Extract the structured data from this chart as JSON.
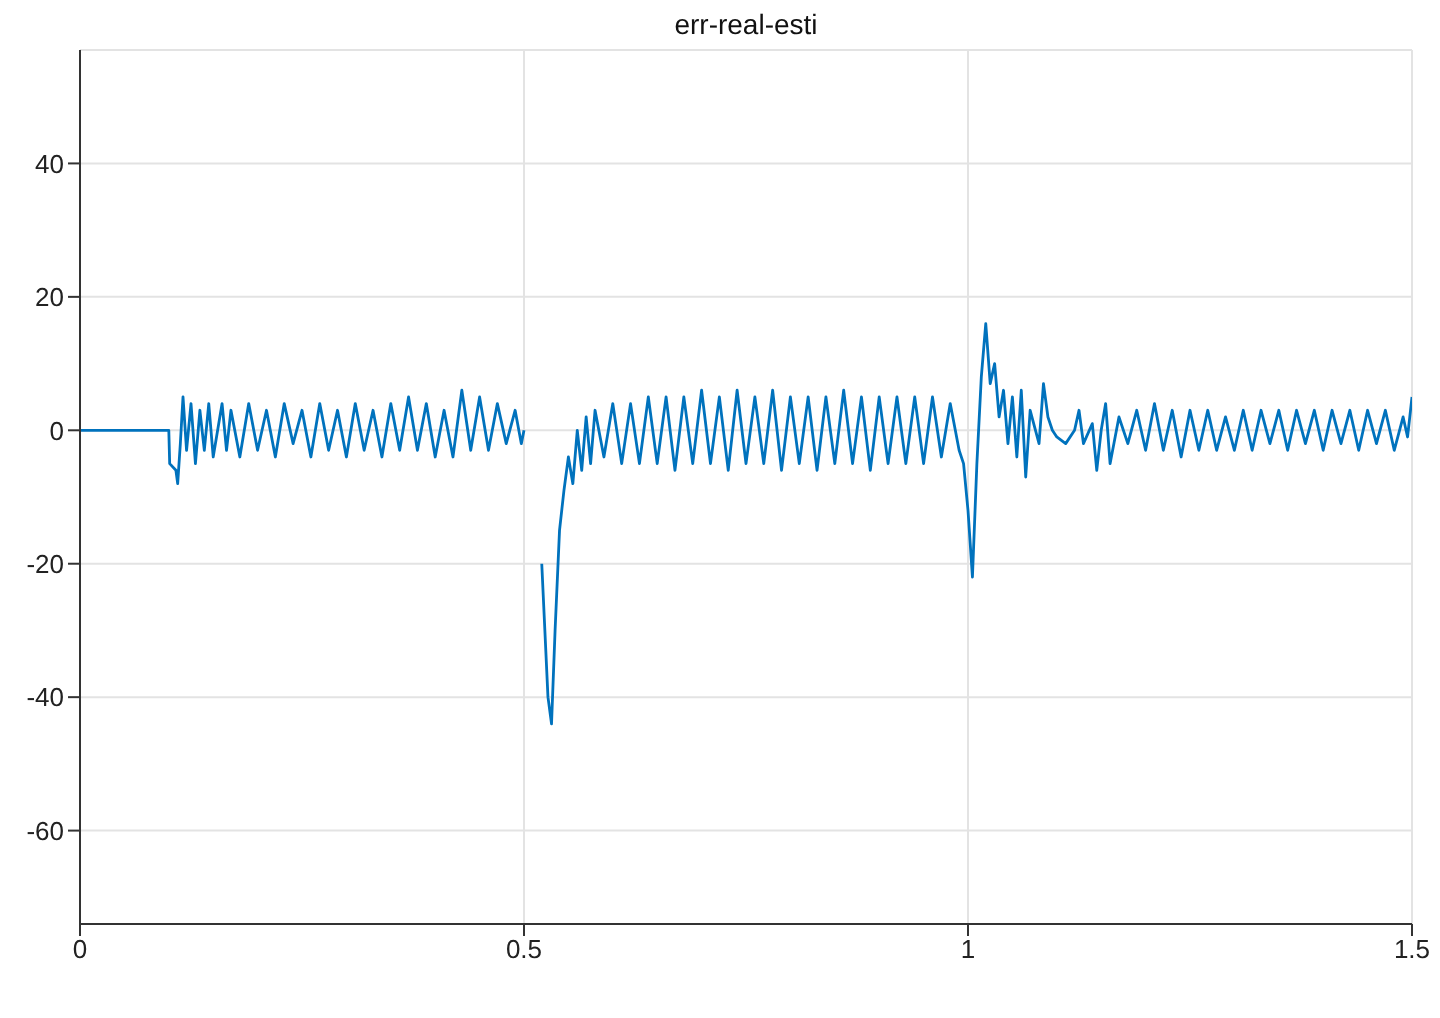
{
  "chart_data": {
    "type": "line",
    "title": "err-real-esti",
    "x": [
      0,
      0.1,
      0.101,
      0.108,
      0.11,
      0.113,
      0.116,
      0.12,
      0.125,
      0.13,
      0.135,
      0.14,
      0.145,
      0.15,
      0.16,
      0.165,
      0.17,
      0.18,
      0.19,
      0.2,
      0.21,
      0.22,
      0.23,
      0.24,
      0.25,
      0.26,
      0.27,
      0.28,
      0.29,
      0.3,
      0.31,
      0.32,
      0.33,
      0.34,
      0.35,
      0.36,
      0.37,
      0.38,
      0.39,
      0.4,
      0.41,
      0.42,
      0.43,
      0.44,
      0.45,
      0.46,
      0.47,
      0.48,
      0.49,
      0.497,
      0.5,
      0.503,
      0.513,
      0.52,
      0.527,
      0.531,
      0.535,
      0.54,
      0.545,
      0.55,
      0.555,
      0.56,
      0.565,
      0.57,
      0.575,
      0.58,
      0.59,
      0.6,
      0.61,
      0.62,
      0.63,
      0.64,
      0.65,
      0.66,
      0.67,
      0.68,
      0.69,
      0.7,
      0.71,
      0.72,
      0.73,
      0.74,
      0.75,
      0.76,
      0.77,
      0.78,
      0.79,
      0.8,
      0.81,
      0.82,
      0.83,
      0.84,
      0.85,
      0.86,
      0.87,
      0.88,
      0.89,
      0.9,
      0.91,
      0.92,
      0.93,
      0.94,
      0.95,
      0.96,
      0.97,
      0.98,
      0.99,
      0.995,
      1.0,
      1.005,
      1.01,
      1.015,
      1.02,
      1.025,
      1.03,
      1.035,
      1.04,
      1.045,
      1.05,
      1.055,
      1.06,
      1.065,
      1.07,
      1.08,
      1.085,
      1.09,
      1.095,
      1.1,
      1.11,
      1.12,
      1.125,
      1.13,
      1.14,
      1.145,
      1.15,
      1.155,
      1.16,
      1.17,
      1.18,
      1.19,
      1.2,
      1.21,
      1.22,
      1.23,
      1.24,
      1.25,
      1.26,
      1.27,
      1.28,
      1.29,
      1.3,
      1.31,
      1.32,
      1.33,
      1.34,
      1.35,
      1.36,
      1.37,
      1.38,
      1.39,
      1.4,
      1.41,
      1.42,
      1.43,
      1.44,
      1.45,
      1.46,
      1.47,
      1.48,
      1.49,
      1.495,
      1.5
    ],
    "series": [
      {
        "color": "#0072bd",
        "values": [
          0,
          0,
          -5,
          -6,
          -8,
          -2,
          5,
          -3,
          4,
          -5,
          3,
          -3,
          4,
          -4,
          4,
          -3,
          3,
          -4,
          4,
          -3,
          3,
          -4,
          4,
          -2,
          3,
          -4,
          4,
          -3,
          3,
          -4,
          4,
          -3,
          3,
          -4,
          4,
          -3,
          5,
          -3,
          4,
          -4,
          3,
          -4,
          6,
          -3,
          5,
          -3,
          4,
          -2,
          3,
          -2,
          0,
          null,
          null,
          -20,
          -40,
          -44,
          -30,
          -15,
          -9,
          -4,
          -8,
          0,
          -6,
          2,
          -5,
          3,
          -4,
          4,
          -5,
          4,
          -5,
          5,
          -5,
          5,
          -6,
          5,
          -5,
          6,
          -5,
          5,
          -6,
          6,
          -5,
          5,
          -5,
          6,
          -6,
          5,
          -5,
          5,
          -6,
          5,
          -5,
          6,
          -5,
          5,
          -6,
          5,
          -5,
          5,
          -5,
          5,
          -5,
          5,
          -4,
          4,
          -3,
          -5,
          -12,
          -22,
          -5,
          8,
          16,
          7,
          10,
          2,
          6,
          -2,
          5,
          -4,
          6,
          -7,
          3,
          -2,
          7,
          2,
          0,
          -1,
          -2,
          0,
          3,
          -2,
          1,
          -6,
          0,
          4,
          -5,
          2,
          -2,
          3,
          -3,
          4,
          -3,
          3,
          -4,
          3,
          -3,
          3,
          -3,
          2,
          -3,
          3,
          -3,
          3,
          -2,
          3,
          -3,
          3,
          -2,
          3,
          -3,
          3,
          -2,
          3,
          -3,
          3,
          -2,
          3,
          -3,
          2,
          -1,
          5
        ]
      }
    ],
    "xlim": [
      0,
      1.5
    ],
    "ylim": [
      -74,
      57
    ],
    "xticks": [
      0,
      0.5,
      1,
      1.5
    ],
    "yticks": [
      -60,
      -40,
      -20,
      0,
      20,
      40
    ],
    "grid": true
  }
}
